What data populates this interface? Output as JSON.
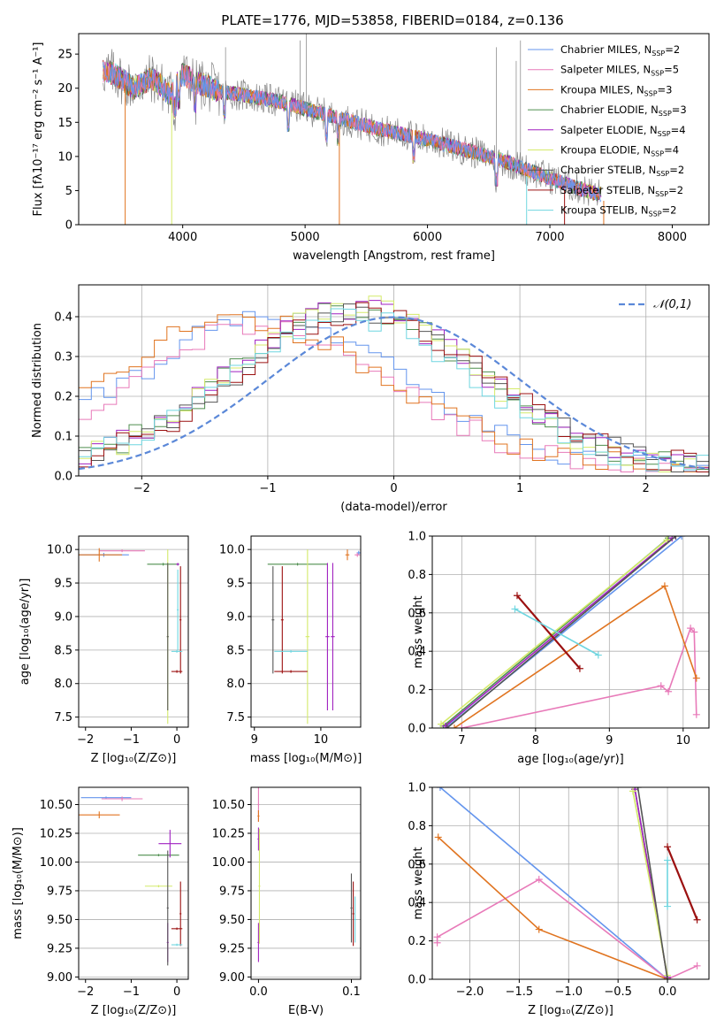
{
  "title": "PLATE=1776, MJD=53858, FIBERID=0184, z=0.136",
  "colors": {
    "Chabrier MILES": "#6495ed",
    "Salpeter MILES": "#e87ab9",
    "Kroupa MILES": "#e07420",
    "Chabrier ELODIE": "#4f8f4f",
    "Salpeter ELODIE": "#a020c0",
    "Kroupa ELODIE": "#d4ea6a",
    "Chabrier STELIB": "#555555",
    "Salpeter STELIB": "#9b1010",
    "Kroupa STELIB": "#6fd6e0",
    "data": "#808080"
  },
  "chart_data": [
    {
      "id": "spectrum",
      "type": "line",
      "xlabel": "wavelength [Angstrom, rest frame]",
      "ylabel": "Flux [fλ10⁻¹⁷ erg cm⁻² s⁻¹ A⁻¹]",
      "xlim": [
        3150,
        8300
      ],
      "ylim": [
        0,
        28
      ],
      "xticks": [
        "4000",
        "5000",
        "6000",
        "7000",
        "8000"
      ],
      "yticks": [
        "0",
        "5",
        "10",
        "15",
        "20",
        "25"
      ],
      "legend_position": "top-right",
      "legend": [
        {
          "name": "Chabrier MILES",
          "nssp": "2"
        },
        {
          "name": "Salpeter MILES",
          "nssp": "5"
        },
        {
          "name": "Kroupa MILES",
          "nssp": "3"
        },
        {
          "name": "Chabrier ELODIE",
          "nssp": "3"
        },
        {
          "name": "Salpeter ELODIE",
          "nssp": "4"
        },
        {
          "name": "Kroupa ELODIE",
          "nssp": "4"
        },
        {
          "name": "Chabrier STELIB",
          "nssp": "2"
        },
        {
          "name": "Salpeter STELIB",
          "nssp": "2"
        },
        {
          "name": "Kroupa STELIB",
          "nssp": "2"
        }
      ],
      "continuum": {
        "x": [
          3350,
          3450,
          3600,
          3750,
          3900,
          4000,
          4100,
          4300,
          4500,
          4800,
          5000,
          5300,
          5600,
          6000,
          6300,
          6600,
          6900,
          7200,
          7400
        ],
        "y": [
          22.5,
          22,
          20,
          21.5,
          19,
          22,
          21,
          19.5,
          19,
          18,
          17,
          15.5,
          14,
          12.5,
          11,
          9.5,
          7.5,
          5.5,
          4.5
        ]
      },
      "range_x": [
        3350,
        7420
      ]
    },
    {
      "id": "residuals",
      "type": "histogram",
      "xlabel": "(data-model)/error",
      "ylabel": "Normed distribution",
      "xlim": [
        -2.5,
        2.5
      ],
      "ylim": [
        0,
        0.48
      ],
      "xticks": [
        "−2",
        "−1",
        "0",
        "1",
        "2"
      ],
      "yticks": [
        "0.0",
        "0.1",
        "0.2",
        "0.3",
        "0.4"
      ],
      "legend_label": "𝒩(0,1)",
      "legend_position": "top-right",
      "profiles": [
        {
          "series": "Chabrier MILES",
          "mu": -1.0,
          "sigma": 0.95,
          "peak": 0.37
        },
        {
          "series": "Salpeter MILES",
          "mu": -1.05,
          "sigma": 0.9,
          "peak": 0.36
        },
        {
          "series": "Kroupa MILES",
          "mu": -1.2,
          "sigma": 1.0,
          "peak": 0.37
        },
        {
          "series": "Chabrier ELODIE",
          "mu": -0.3,
          "sigma": 0.85,
          "peak": 0.4
        },
        {
          "series": "Salpeter ELODIE",
          "mu": -0.3,
          "sigma": 0.85,
          "peak": 0.4
        },
        {
          "series": "Kroupa ELODIE",
          "mu": -0.3,
          "sigma": 0.82,
          "peak": 0.41
        },
        {
          "series": "Chabrier STELIB",
          "mu": -0.25,
          "sigma": 0.85,
          "peak": 0.39
        },
        {
          "series": "Salpeter STELIB",
          "mu": -0.25,
          "sigma": 0.85,
          "peak": 0.39
        },
        {
          "series": "Kroupa STELIB",
          "mu": -0.35,
          "sigma": 0.85,
          "peak": 0.38
        }
      ]
    },
    {
      "id": "age-vs-Z",
      "type": "scatter",
      "xlabel": "Z [log₁₀(Z/Z⊙)]",
      "ylabel": "age  [log₁₀(age/yr)]",
      "xlim": [
        -2.15,
        0.25
      ],
      "ylim": [
        7.35,
        10.2
      ],
      "xticks": [
        -2,
        -1,
        0
      ],
      "yticks": [
        7.5,
        8.0,
        8.5,
        9.0,
        9.5,
        10.0
      ],
      "points": [
        {
          "series": "Chabrier MILES",
          "x": -1.6,
          "y": 9.92,
          "ex": 0.55,
          "ey": 0.03
        },
        {
          "series": "Salpeter MILES",
          "x": -1.2,
          "y": 9.98,
          "ex": 0.5,
          "ey": 0.02
        },
        {
          "series": "Kroupa MILES",
          "x": -1.7,
          "y": 9.92,
          "ex": 0.5,
          "ey": 0.1
        },
        {
          "series": "Chabrier ELODIE",
          "x": -0.3,
          "y": 9.78,
          "ex": 0.35,
          "ey": 0.02
        },
        {
          "series": "Salpeter ELODIE",
          "x": 0.02,
          "y": 9.78,
          "ex": 0.03,
          "ey": 0.02
        },
        {
          "series": "Kroupa ELODIE",
          "x": -0.2,
          "y": 8.7,
          "ex": 0.02,
          "ey": 1.3
        },
        {
          "series": "Chabrier STELIB",
          "x": -0.2,
          "y": 8.7,
          "ex": 0.02,
          "ey": 1.1
        },
        {
          "series": "Salpeter STELIB",
          "x": 0.08,
          "y": 8.95,
          "ex": 0.02,
          "ey": 0.8
        },
        {
          "series": "Salpeter STELIB",
          "x": 0.0,
          "y": 8.18,
          "ex": 0.12,
          "ey": 0.02
        },
        {
          "series": "Kroupa STELIB",
          "x": 0.0,
          "y": 8.48,
          "ex": 0.12,
          "ey": 0.02
        },
        {
          "series": "Kroupa STELIB",
          "x": 0.02,
          "y": 9.1,
          "ex": 0.02,
          "ey": 0.6
        }
      ]
    },
    {
      "id": "age-vs-mass",
      "type": "scatter",
      "xlabel": "mass [log₁₀(M/M⊙)]",
      "ylabel": "",
      "xlim": [
        8.95,
        10.6
      ],
      "ylim": [
        7.35,
        10.2
      ],
      "xticks": [
        9,
        10
      ],
      "yticks": [
        7.5,
        8.0,
        8.5,
        9.0,
        9.5,
        10.0
      ],
      "points": [
        {
          "series": "Chabrier MILES",
          "x": 10.57,
          "y": 9.95,
          "ex": 0.03,
          "ey": 0.03
        },
        {
          "series": "Salpeter MILES",
          "x": 10.55,
          "y": 9.92,
          "ex": 0.04,
          "ey": 0.03
        },
        {
          "series": "Kroupa MILES",
          "x": 10.4,
          "y": 9.92,
          "ex": 0.03,
          "ey": 0.08
        },
        {
          "series": "Chabrier ELODIE",
          "x": 9.65,
          "y": 9.78,
          "ex": 0.45,
          "ey": 0.02
        },
        {
          "series": "Salpeter ELODIE",
          "x": 10.18,
          "y": 8.7,
          "ex": 0.03,
          "ey": 1.1
        },
        {
          "series": "Salpeter ELODIE",
          "x": 10.1,
          "y": 8.7,
          "ex": 0.03,
          "ey": 1.1
        },
        {
          "series": "Kroupa ELODIE",
          "x": 9.8,
          "y": 8.7,
          "ex": 0.03,
          "ey": 1.3
        },
        {
          "series": "Chabrier STELIB",
          "x": 9.28,
          "y": 8.95,
          "ex": 0.02,
          "ey": 0.8
        },
        {
          "series": "Salpeter STELIB",
          "x": 9.42,
          "y": 8.95,
          "ex": 0.02,
          "ey": 0.8
        },
        {
          "series": "Salpeter STELIB",
          "x": 9.55,
          "y": 8.18,
          "ex": 0.25,
          "ey": 0.02
        },
        {
          "series": "Kroupa STELIB",
          "x": 9.55,
          "y": 8.48,
          "ex": 0.25,
          "ey": 0.02
        }
      ]
    },
    {
      "id": "weight-vs-age",
      "type": "line",
      "xlabel": "age  [log₁₀(age/yr)]",
      "ylabel": "mass weight",
      "xlim": [
        6.6,
        10.35
      ],
      "ylim": [
        0,
        1
      ],
      "xticks": [
        7,
        8,
        9,
        10
      ],
      "yticks": [
        0.0,
        0.2,
        0.4,
        0.6,
        0.8,
        1.0
      ],
      "series": [
        {
          "name": "Chabrier MILES",
          "x": [
            6.78,
            9.98
          ],
          "y": [
            0.0,
            1.0
          ]
        },
        {
          "name": "Salpeter MILES",
          "x": [
            7.0,
            9.7,
            9.8,
            10.1,
            10.15,
            10.18
          ],
          "y": [
            0.0,
            0.22,
            0.19,
            0.52,
            0.5,
            0.07
          ]
        },
        {
          "name": "Kroupa MILES",
          "x": [
            6.9,
            9.75,
            10.18
          ],
          "y": [
            0.0,
            0.74,
            0.26
          ]
        },
        {
          "name": "Chabrier ELODIE",
          "x": [
            6.75,
            9.8
          ],
          "y": [
            0.01,
            0.99
          ]
        },
        {
          "name": "Salpeter ELODIE",
          "x": [
            6.78,
            9.85
          ],
          "y": [
            0.01,
            0.99
          ]
        },
        {
          "name": "Kroupa ELODIE",
          "x": [
            6.72,
            9.78
          ],
          "y": [
            0.02,
            0.98
          ]
        },
        {
          "name": "Chabrier STELIB",
          "x": [
            6.8,
            9.9
          ],
          "y": [
            0.0,
            1.0
          ]
        },
        {
          "name": "Salpeter STELIB",
          "x": [
            7.75,
            8.6
          ],
          "y": [
            0.69,
            0.31
          ]
        },
        {
          "name": "Kroupa STELIB",
          "x": [
            7.72,
            8.85
          ],
          "y": [
            0.62,
            0.38
          ]
        }
      ]
    },
    {
      "id": "mass-vs-Z",
      "type": "scatter",
      "xlabel": "Z [log₁₀(Z/Z⊙)]",
      "ylabel": "mass [log₁₀(M/M⊙)]",
      "xlim": [
        -2.15,
        0.25
      ],
      "ylim": [
        8.98,
        10.65
      ],
      "xticks": [
        -2,
        -1,
        0
      ],
      "yticks": [
        9.0,
        9.25,
        9.5,
        9.75,
        10.0,
        10.25,
        10.5
      ],
      "points": [
        {
          "series": "Chabrier MILES",
          "x": -1.55,
          "y": 10.56,
          "ex": 0.55,
          "ey": 0.01
        },
        {
          "series": "Salpeter MILES",
          "x": -1.2,
          "y": 10.55,
          "ex": 0.45,
          "ey": 0.02
        },
        {
          "series": "Kroupa MILES",
          "x": -1.7,
          "y": 10.41,
          "ex": 0.45,
          "ey": 0.03
        },
        {
          "series": "Chabrier ELODIE",
          "x": -0.4,
          "y": 10.06,
          "ex": 0.45,
          "ey": 0.01
        },
        {
          "series": "Salpeter ELODIE",
          "x": -0.15,
          "y": 10.16,
          "ex": 0.25,
          "ey": 0.12
        },
        {
          "series": "Salpeter ELODIE",
          "x": -0.2,
          "y": 9.3,
          "ex": 0.02,
          "ey": 0.17
        },
        {
          "series": "Kroupa ELODIE",
          "x": -0.4,
          "y": 9.79,
          "ex": 0.3,
          "ey": 0.01
        },
        {
          "series": "Chabrier STELIB",
          "x": -0.2,
          "y": 9.6,
          "ex": 0.02,
          "ey": 0.5
        },
        {
          "series": "Salpeter STELIB",
          "x": 0.08,
          "y": 9.55,
          "ex": 0.02,
          "ey": 0.28
        },
        {
          "series": "Salpeter STELIB",
          "x": 0.0,
          "y": 9.42,
          "ex": 0.12,
          "ey": 0.01
        },
        {
          "series": "Kroupa STELIB",
          "x": 0.0,
          "y": 9.28,
          "ex": 0.12,
          "ey": 0.01
        }
      ]
    },
    {
      "id": "mass-vs-EBV",
      "type": "scatter",
      "xlabel": "E(B-V)",
      "ylabel": "",
      "xlim": [
        -0.008,
        0.11
      ],
      "ylim": [
        8.98,
        10.65
      ],
      "xticks": [
        0.0,
        0.1
      ],
      "yticks": [
        9.0,
        9.25,
        9.5,
        9.75,
        10.0,
        10.25,
        10.5
      ],
      "points": [
        {
          "series": "Salpeter MILES",
          "x": 0.0,
          "y": 10.5,
          "ex": 0.001,
          "ey": 0.15
        },
        {
          "series": "Kroupa MILES",
          "x": 0.0,
          "y": 10.4,
          "ex": 0.001,
          "ey": 0.05
        },
        {
          "series": "Salpeter ELODIE",
          "x": 0.0,
          "y": 10.2,
          "ex": 0.001,
          "ey": 0.1
        },
        {
          "series": "Salpeter ELODIE",
          "x": 0.0,
          "y": 9.3,
          "ex": 0.001,
          "ey": 0.17
        },
        {
          "series": "Kroupa ELODIE",
          "x": 0.001,
          "y": 9.79,
          "ex": 0.001,
          "ey": 0.5
        },
        {
          "series": "Chabrier STELIB",
          "x": 0.1,
          "y": 9.6,
          "ex": 0.001,
          "ey": 0.3
        },
        {
          "series": "Salpeter STELIB",
          "x": 0.102,
          "y": 9.55,
          "ex": 0.001,
          "ey": 0.28
        },
        {
          "series": "Kroupa STELIB",
          "x": 0.104,
          "y": 9.5,
          "ex": 0.001,
          "ey": 0.2
        }
      ]
    },
    {
      "id": "weight-vs-Z",
      "type": "line",
      "xlabel": "Z [log₁₀(Z/Z⊙)]",
      "ylabel": "mass weight",
      "xlim": [
        -2.38,
        0.42
      ],
      "ylim": [
        0,
        1
      ],
      "xticks": [
        -2.0,
        -1.5,
        -1.0,
        -0.5,
        0.0
      ],
      "yticks": [
        0.0,
        0.2,
        0.4,
        0.6,
        0.8,
        1.0
      ],
      "series": [
        {
          "name": "Chabrier MILES",
          "x": [
            -2.3,
            0.0
          ],
          "y": [
            1.0,
            0.0
          ]
        },
        {
          "name": "Salpeter MILES",
          "x": [
            -2.33,
            -2.33,
            -1.3,
            0.0,
            0.3
          ],
          "y": [
            0.19,
            0.22,
            0.52,
            0.0,
            0.07
          ]
        },
        {
          "name": "Kroupa MILES",
          "x": [
            -2.32,
            -1.3,
            0.0
          ],
          "y": [
            0.74,
            0.26,
            0.0
          ]
        },
        {
          "name": "Chabrier ELODIE",
          "x": [
            -0.33,
            0.0
          ],
          "y": [
            0.99,
            0.01
          ]
        },
        {
          "name": "Salpeter ELODIE",
          "x": [
            -0.33,
            0.0
          ],
          "y": [
            0.99,
            0.01
          ]
        },
        {
          "name": "Kroupa ELODIE",
          "x": [
            -0.35,
            0.0
          ],
          "y": [
            0.98,
            0.02
          ]
        },
        {
          "name": "Chabrier STELIB",
          "x": [
            -0.3,
            0.0
          ],
          "y": [
            1.0,
            0.0
          ]
        },
        {
          "name": "Salpeter STELIB",
          "x": [
            0.0,
            0.3
          ],
          "y": [
            0.69,
            0.31
          ]
        },
        {
          "name": "Kroupa STELIB",
          "x": [
            0.0,
            0.0
          ],
          "y": [
            0.62,
            0.38
          ]
        }
      ]
    }
  ]
}
